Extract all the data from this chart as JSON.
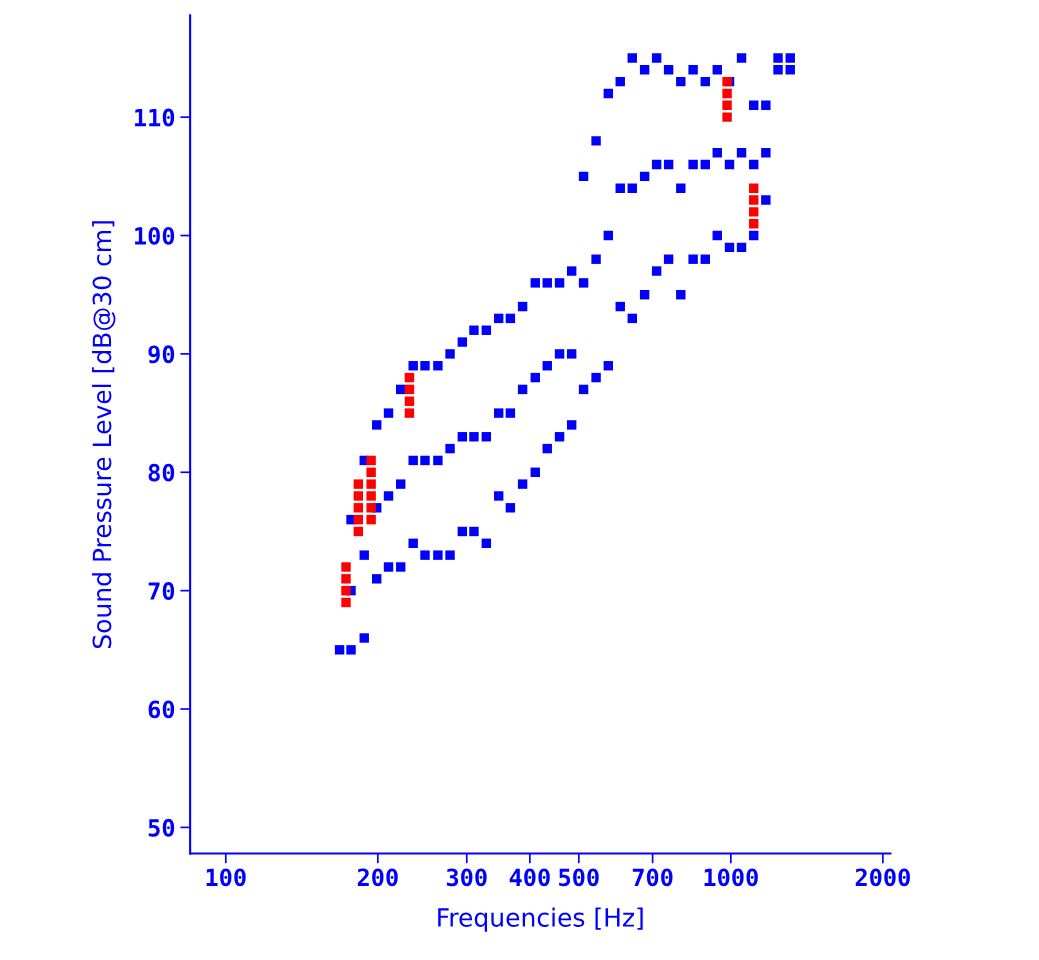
{
  "chart_data": {
    "type": "scatter",
    "xlabel": "Frequencies [Hz]",
    "ylabel": "Sound Pressure Level [dB@30 cm]",
    "log": "x",
    "grid": false,
    "marker": "square",
    "xlim": [
      85,
      2070
    ],
    "xticks": [
      100,
      200,
      300,
      400,
      500,
      700,
      1000,
      2000
    ],
    "ylim": [
      47.8,
      118.6
    ],
    "yticks": [
      50,
      60,
      70,
      80,
      90,
      100,
      110
    ],
    "series": [
      {
        "color": "#0000ff",
        "x": [
          168,
          177,
          177,
          177,
          188,
          188,
          188,
          199,
          199,
          199,
          210,
          210,
          210,
          222,
          222,
          222,
          235,
          235,
          235,
          248,
          248,
          248,
          263,
          263,
          263,
          278,
          278,
          278,
          294,
          294,
          294,
          310,
          310,
          310,
          328,
          328,
          328,
          347,
          347,
          347,
          366,
          366,
          366,
          387,
          387,
          387,
          410,
          410,
          410,
          433,
          433,
          433,
          458,
          458,
          458,
          484,
          484,
          484,
          511,
          511,
          511,
          541,
          541,
          541,
          572,
          572,
          572,
          604,
          604,
          604,
          638,
          638,
          638,
          675,
          675,
          675,
          713,
          713,
          713,
          753,
          753,
          753,
          796,
          796,
          796,
          842,
          842,
          842,
          890,
          890,
          890,
          940,
          940,
          940,
          994,
          994,
          994,
          1050,
          1050,
          1050,
          1110,
          1110,
          1110,
          1173,
          1173,
          1173,
          1240,
          1240,
          1311,
          1311
        ],
        "values": [
          65,
          65,
          70,
          76,
          66,
          73,
          81,
          71,
          77,
          84,
          72,
          78,
          85,
          72,
          79,
          87,
          74,
          81,
          89,
          73,
          81,
          89,
          73,
          81,
          89,
          73,
          82,
          90,
          75,
          83,
          91,
          75,
          83,
          92,
          74,
          83,
          92,
          78,
          85,
          93,
          77,
          85,
          93,
          79,
          87,
          94,
          80,
          88,
          96,
          82,
          89,
          96,
          83,
          90,
          96,
          84,
          90,
          97,
          87,
          96,
          105,
          88,
          98,
          108,
          89,
          100,
          112,
          94,
          104,
          113,
          93,
          104,
          115,
          95,
          105,
          114,
          97,
          106,
          115,
          98,
          106,
          114,
          95,
          104,
          113,
          98,
          106,
          114,
          98,
          106,
          113,
          100,
          107,
          114,
          99,
          106,
          113,
          99,
          107,
          115,
          100,
          106,
          111,
          103,
          107,
          111,
          114,
          115,
          114,
          115
        ]
      },
      {
        "color": "#ff0000",
        "x": [
          173,
          173,
          173,
          173,
          183,
          183,
          183,
          183,
          183,
          194,
          194,
          194,
          194,
          194,
          194,
          231,
          231,
          231,
          231,
          983,
          983,
          983,
          983,
          1110,
          1110,
          1110,
          1110
        ],
        "values": [
          69,
          70,
          71,
          72,
          75,
          76,
          77,
          78,
          79,
          76,
          77,
          78,
          79,
          80,
          81,
          85,
          86,
          87,
          88,
          110,
          111,
          112,
          113,
          101,
          102,
          103,
          104
        ]
      }
    ]
  }
}
